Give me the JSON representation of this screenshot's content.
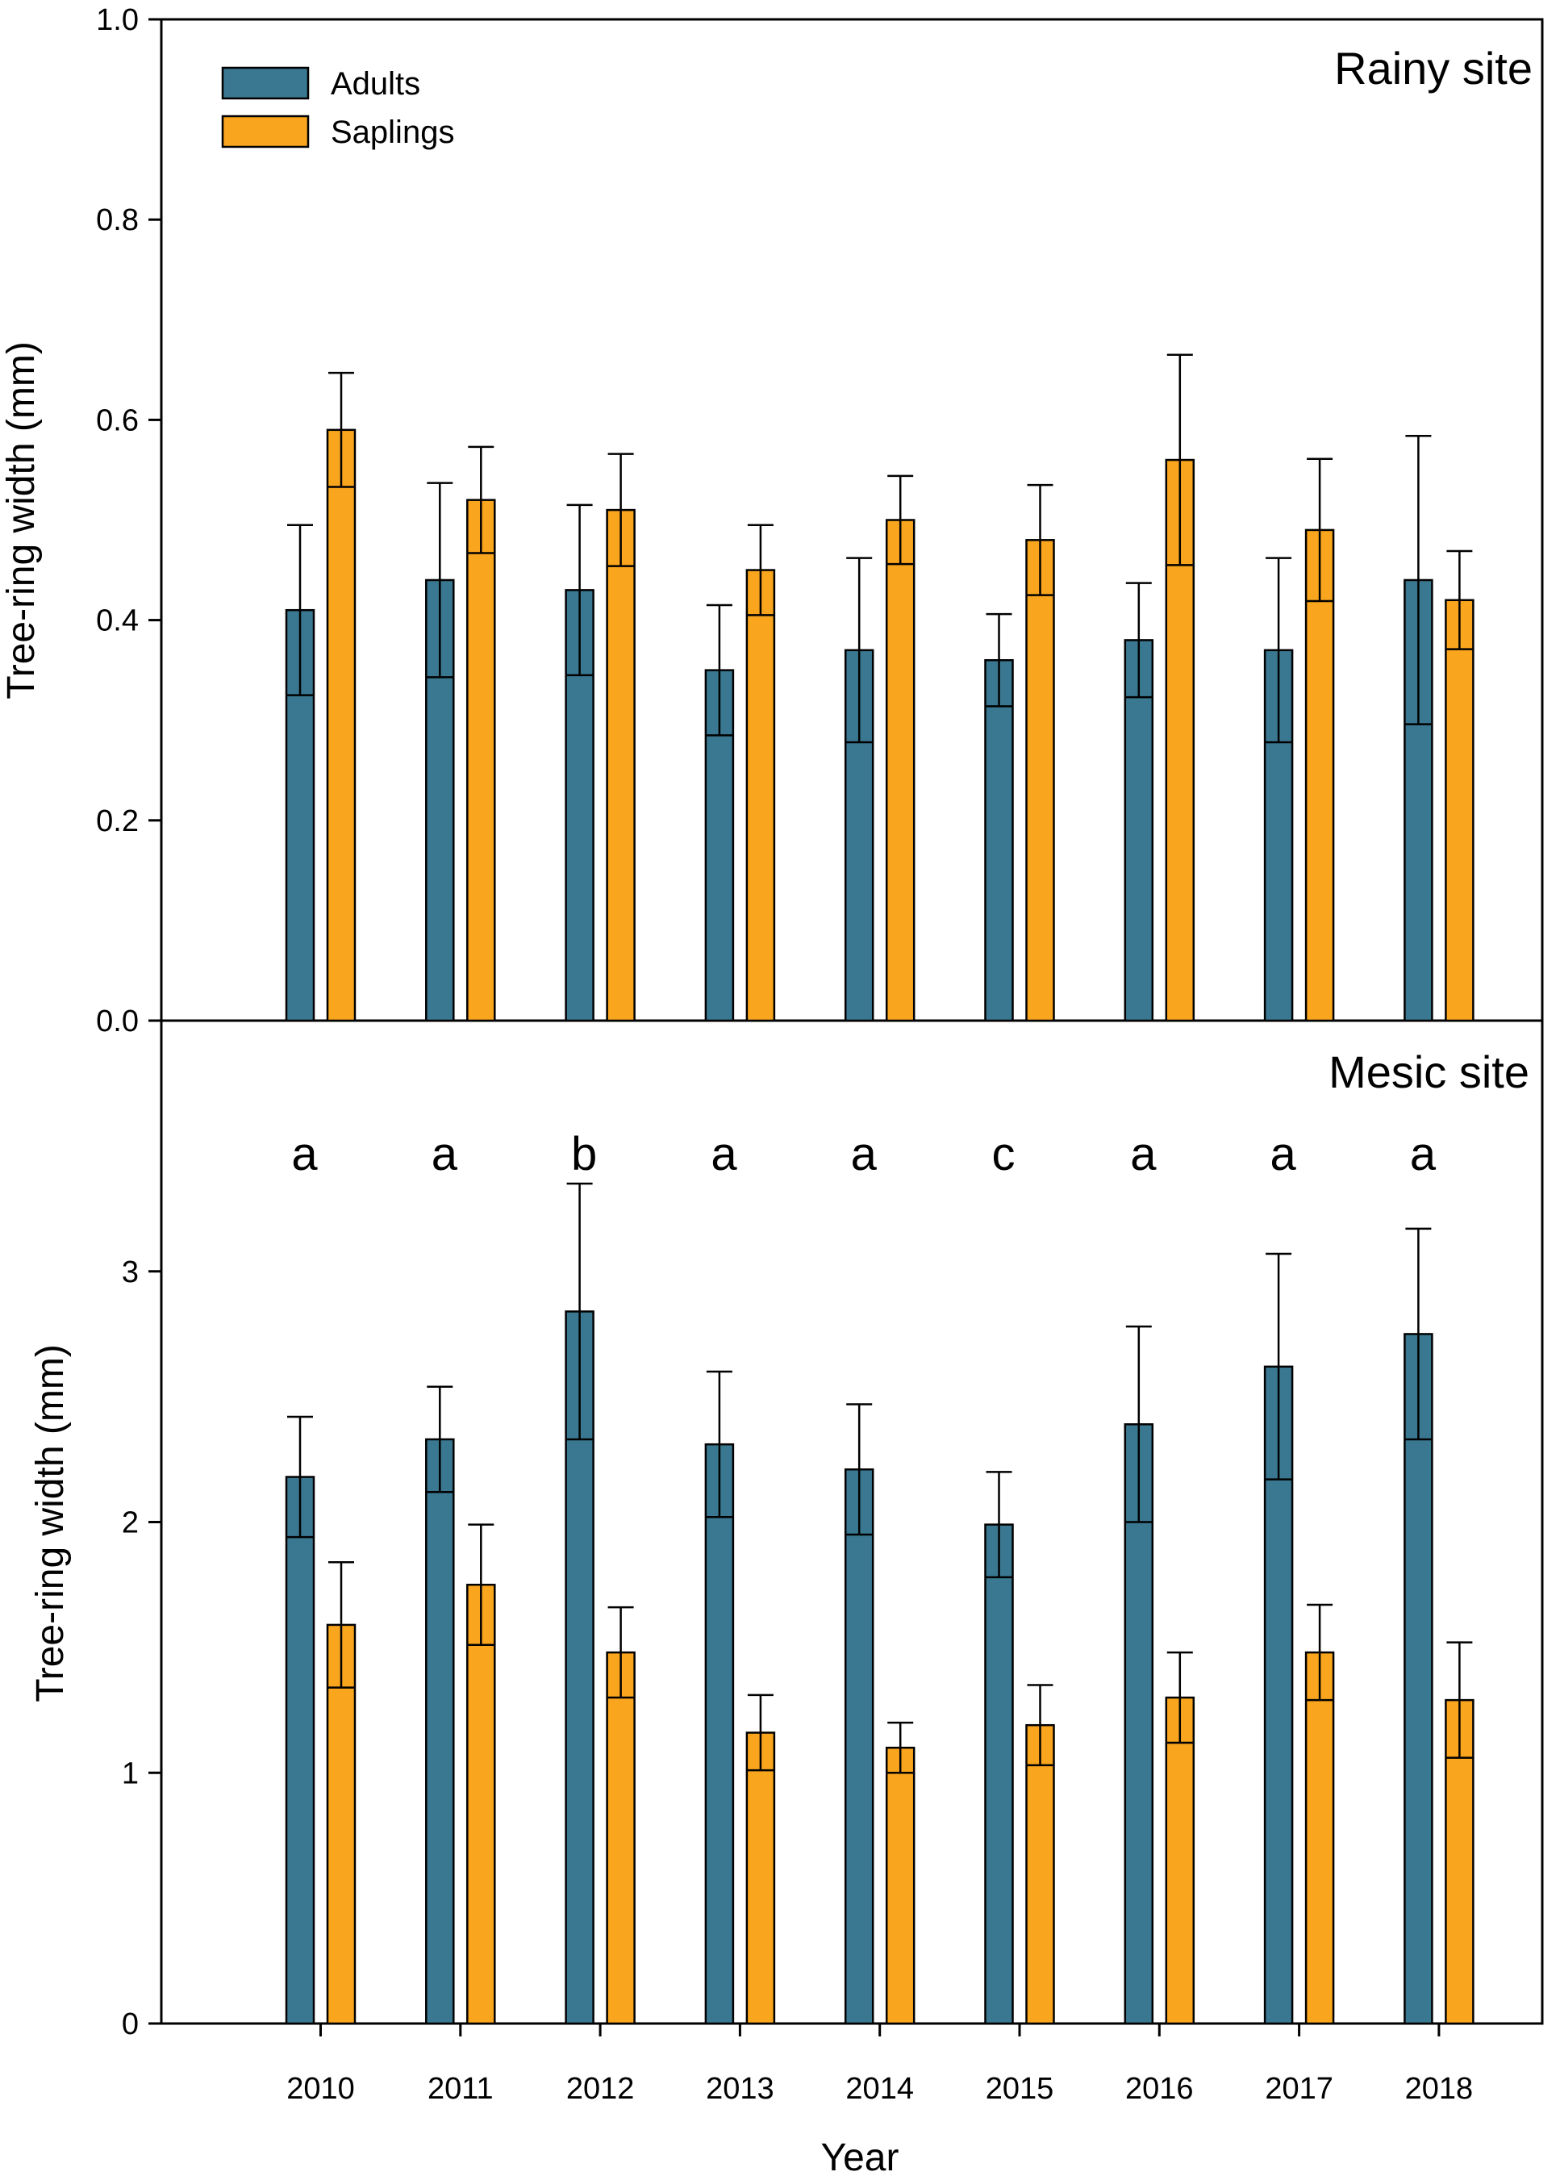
{
  "chart_data": {
    "type": "bar",
    "xlabel": "Year",
    "categories": [
      "2010",
      "2011",
      "2012",
      "2013",
      "2014",
      "2015",
      "2016",
      "2017",
      "2018"
    ],
    "legend": {
      "position": "top-left",
      "entries": [
        {
          "name": "Adults",
          "color": "#3a7891"
        },
        {
          "name": "Saplings",
          "color": "#f9a51d"
        }
      ]
    },
    "panels": [
      {
        "title": "Rainy site",
        "ylabel": "Tree-ring width (mm)",
        "ylim": [
          0,
          1.0
        ],
        "yticks": [
          "0.0",
          "0.2",
          "0.4",
          "0.6",
          "0.8",
          "1.0"
        ],
        "ytick_values": [
          0,
          0.2,
          0.4,
          0.6,
          0.8,
          1.0
        ],
        "series": [
          {
            "name": "Adults",
            "values": [
              0.41,
              0.44,
              0.43,
              0.35,
              0.37,
              0.36,
              0.38,
              0.37,
              0.44
            ],
            "errors": [
              0.085,
              0.097,
              0.085,
              0.065,
              0.092,
              0.046,
              0.057,
              0.092,
              0.144
            ]
          },
          {
            "name": "Saplings",
            "values": [
              0.59,
              0.52,
              0.51,
              0.45,
              0.5,
              0.48,
              0.56,
              0.49,
              0.42
            ],
            "errors": [
              0.057,
              0.053,
              0.056,
              0.045,
              0.044,
              0.055,
              0.105,
              0.071,
              0.049
            ]
          }
        ],
        "annotations": []
      },
      {
        "title": "Mesic site",
        "ylabel": "Tree-ring width (mm)",
        "ylim": [
          0,
          4.0
        ],
        "yticks": [
          "0",
          "1",
          "2",
          "3"
        ],
        "ytick_values": [
          0,
          1,
          2,
          3
        ],
        "series": [
          {
            "name": "Adults",
            "values": [
              2.18,
              2.33,
              2.84,
              2.31,
              2.21,
              1.99,
              2.39,
              2.62,
              2.75
            ],
            "errors": [
              0.24,
              0.21,
              0.51,
              0.29,
              0.26,
              0.21,
              0.39,
              0.45,
              0.42
            ]
          },
          {
            "name": "Saplings",
            "values": [
              1.59,
              1.75,
              1.48,
              1.16,
              1.1,
              1.19,
              1.3,
              1.48,
              1.29
            ],
            "errors": [
              0.25,
              0.24,
              0.18,
              0.15,
              0.1,
              0.16,
              0.18,
              0.19,
              0.23
            ]
          }
        ],
        "annotations": [
          "a",
          "a",
          "b",
          "a",
          "a",
          "c",
          "a",
          "a",
          "a"
        ]
      }
    ]
  }
}
